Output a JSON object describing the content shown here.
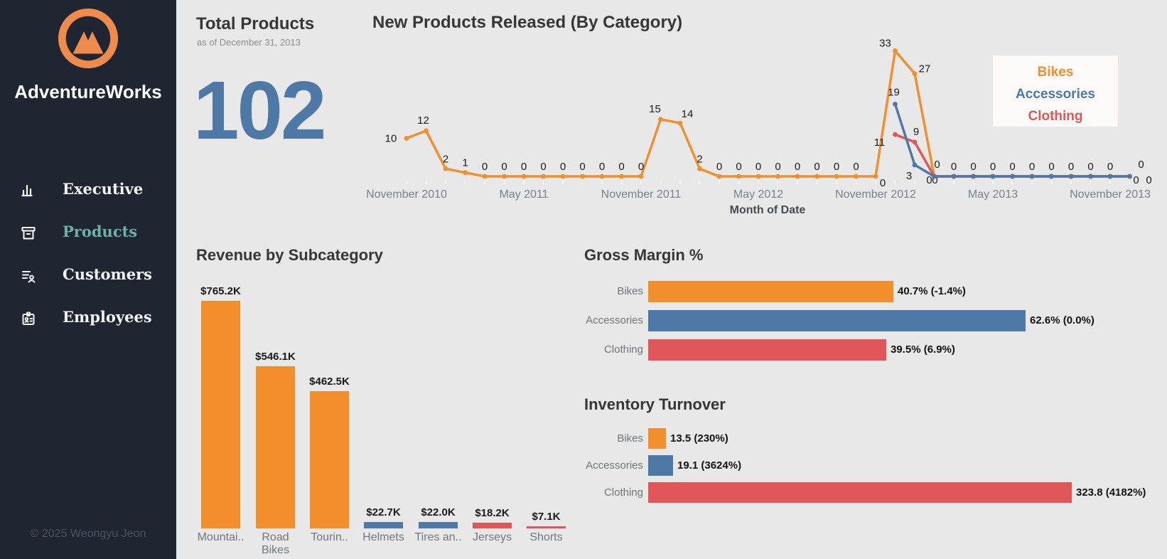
{
  "sidebar": {
    "brand": "AdventureWorks",
    "items": [
      {
        "label": "Executive",
        "icon": "bar-chart-icon",
        "active": false
      },
      {
        "label": "Products",
        "icon": "archive-box-icon",
        "active": true
      },
      {
        "label": "Customers",
        "icon": "customer-list-icon",
        "active": false
      },
      {
        "label": "Employees",
        "icon": "id-badge-icon",
        "active": false
      }
    ],
    "copyright": "© 2025 Weongyu Jeon"
  },
  "colors": {
    "bikes": "#F28E2B",
    "accessories": "#4E79A7",
    "clothing": "#E15759",
    "accent_teal": "#6FAFA9",
    "sidebar_bg": "#1F2631",
    "main_bg": "#E8E8E8",
    "big_number": "#4E79A7",
    "logo_orange": "#EE8B4D"
  },
  "kpi": {
    "title": "Total Products",
    "subtitle": "as of December 31, 2013",
    "value": "102"
  },
  "chart_data": [
    {
      "id": "new_products",
      "type": "line",
      "title": "New Products Released (By Category)",
      "xlabel": "Month of Date",
      "ylim": [
        0,
        36
      ],
      "grid": false,
      "legend_position": "top-right",
      "legend_entries": [
        "Bikes",
        "Accessories",
        "Clothing"
      ],
      "x_unit": "month",
      "x_range": [
        "November 2010",
        "December 2013"
      ],
      "x_ticks": [
        {
          "index": 0,
          "label": "November 2010"
        },
        {
          "index": 6,
          "label": "May 2011"
        },
        {
          "index": 12,
          "label": "November 2011"
        },
        {
          "index": 18,
          "label": "May 2012"
        },
        {
          "index": 24,
          "label": "November 2012"
        },
        {
          "index": 30,
          "label": "May 2013"
        },
        {
          "index": 36,
          "label": "November 2013"
        }
      ],
      "series": [
        {
          "name": "Bikes",
          "color": "#F28E2B",
          "values": [
            10,
            12,
            2,
            1,
            0,
            0,
            0,
            0,
            0,
            0,
            0,
            0,
            0,
            15,
            14,
            2,
            0,
            0,
            0,
            0,
            0,
            0,
            0,
            0,
            0,
            33,
            27,
            0,
            0,
            0,
            0,
            0,
            0,
            0,
            0,
            0,
            0,
            0
          ],
          "label_indices": "all"
        },
        {
          "name": "Clothing",
          "color": "#E15759",
          "values": [
            null,
            null,
            null,
            null,
            null,
            null,
            null,
            null,
            null,
            null,
            null,
            null,
            null,
            null,
            null,
            null,
            null,
            null,
            null,
            null,
            null,
            null,
            null,
            null,
            null,
            11,
            9,
            0,
            0,
            0,
            0,
            0,
            0,
            0,
            0,
            0,
            0,
            0
          ],
          "label_indices": [
            25,
            26,
            27,
            37
          ]
        },
        {
          "name": "Accessories",
          "color": "#4E79A7",
          "values": [
            null,
            null,
            null,
            null,
            null,
            null,
            null,
            null,
            null,
            null,
            null,
            null,
            null,
            null,
            null,
            null,
            null,
            null,
            null,
            null,
            null,
            null,
            null,
            null,
            null,
            19,
            3,
            0,
            0,
            0,
            0,
            0,
            0,
            0,
            0,
            0,
            0,
            0
          ],
          "label_indices": [
            25,
            26,
            27,
            37
          ]
        }
      ]
    },
    {
      "id": "revenue_by_subcategory",
      "type": "bar",
      "title": "Revenue by Subcategory",
      "categories": [
        "Mountai..",
        "Road Bikes",
        "Tourin..",
        "Helmets",
        "Tires an..",
        "Jerseys",
        "Shorts"
      ],
      "values": [
        765.2,
        546.1,
        462.5,
        22.7,
        22.0,
        18.2,
        7.1
      ],
      "value_labels": [
        "$765.2K",
        "$546.1K",
        "$462.5K",
        "$22.7K",
        "$22.0K",
        "$18.2K",
        "$7.1K"
      ],
      "bar_colors": [
        "#F28E2B",
        "#F28E2B",
        "#F28E2B",
        "#4E79A7",
        "#4E79A7",
        "#E15759",
        "#E15759"
      ],
      "unit": "USD thousands"
    },
    {
      "id": "gross_margin",
      "type": "bar",
      "orientation": "horizontal",
      "title": "Gross Margin %",
      "categories": [
        "Bikes",
        "Accessories",
        "Clothing"
      ],
      "values": [
        40.7,
        62.6,
        39.5
      ],
      "value_labels": [
        "40.7% (-1.4%)",
        "62.6% (0.0%)",
        "39.5% (6.9%)"
      ],
      "bar_colors": [
        "#F28E2B",
        "#4E79A7",
        "#E15759"
      ]
    },
    {
      "id": "inventory_turnover",
      "type": "bar",
      "orientation": "horizontal",
      "title": "Inventory Turnover",
      "categories": [
        "Bikes",
        "Accessories",
        "Clothing"
      ],
      "values": [
        13.5,
        19.1,
        323.8
      ],
      "value_labels": [
        "13.5 (230%)",
        "19.1 (3624%)",
        "323.8 (4182%)"
      ],
      "bar_colors": [
        "#F28E2B",
        "#4E79A7",
        "#E15759"
      ]
    }
  ]
}
